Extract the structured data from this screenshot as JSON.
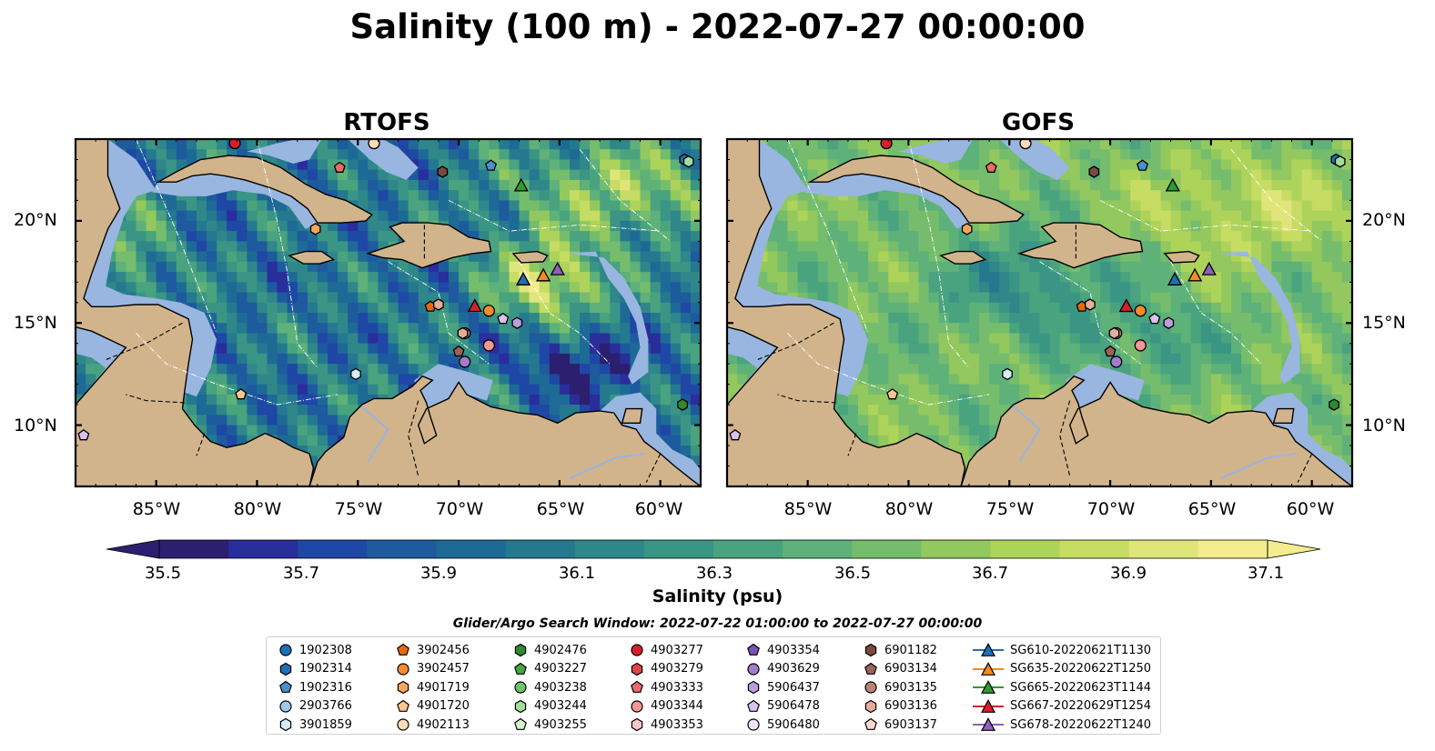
{
  "title": "Salinity (100 m) - 2022-07-27 00:00:00",
  "panels": [
    {
      "title": "RTOFS"
    },
    {
      "title": "GOFS"
    }
  ],
  "map_extent": {
    "lon_min": -89,
    "lon_max": -58,
    "lat_min": 7,
    "lat_max": 24
  },
  "lat_ticks": [
    "20°N",
    "15°N",
    "10°N"
  ],
  "lon_ticks": [
    "85°W",
    "80°W",
    "75°W",
    "70°W",
    "65°W",
    "60°W"
  ],
  "colorbar": {
    "label": "Salinity (psu)",
    "ticks": [
      "35.5",
      "35.7",
      "35.9",
      "36.1",
      "36.3",
      "36.5",
      "36.7",
      "36.9",
      "37.1"
    ],
    "min": 35.5,
    "max": 37.1,
    "step": 0.1,
    "colors": [
      "#2c1f70",
      "#2a2d9c",
      "#1f47a5",
      "#1d5a9e",
      "#1e6a96",
      "#25798f",
      "#2f878a",
      "#3a9585",
      "#49a37e",
      "#5db179",
      "#75bd6d",
      "#92c85e",
      "#aed35b",
      "#c6dc63",
      "#e0e57a",
      "#f4ec8e"
    ],
    "extend": "both"
  },
  "land_color": "#d2b48c",
  "shelf_color": "#98b6e0",
  "search_window": "Glider/Argo Search Window: 2022-07-22 01:00:00 to 2022-07-27 00:00:00",
  "legend": {
    "columns": [
      [
        {
          "label": "1902308",
          "marker": "circle",
          "color": "#1f6fb4"
        },
        {
          "label": "1902314",
          "marker": "hexagon",
          "color": "#1f6fb4"
        },
        {
          "label": "1902316",
          "marker": "pentagon",
          "color": "#4a90cc"
        },
        {
          "label": "2903766",
          "marker": "circle",
          "color": "#9ec9ea"
        },
        {
          "label": "3901859",
          "marker": "hexagon",
          "color": "#d6ecf8"
        }
      ],
      [
        {
          "label": "3902456",
          "marker": "pentagon",
          "color": "#e3690e"
        },
        {
          "label": "3902457",
          "marker": "circle",
          "color": "#f58a30"
        },
        {
          "label": "4901719",
          "marker": "hexagon",
          "color": "#f9a55b"
        },
        {
          "label": "4901720",
          "marker": "pentagon",
          "color": "#fcc591"
        },
        {
          "label": "4902113",
          "marker": "circle",
          "color": "#fddcb8"
        }
      ],
      [
        {
          "label": "4902476",
          "marker": "hexagon",
          "color": "#2e8b2e"
        },
        {
          "label": "4903227",
          "marker": "pentagon",
          "color": "#43a843"
        },
        {
          "label": "4903238",
          "marker": "circle",
          "color": "#6fc36a"
        },
        {
          "label": "4903244",
          "marker": "hexagon",
          "color": "#a5dc9c"
        },
        {
          "label": "4903255",
          "marker": "pentagon",
          "color": "#d5f2cd"
        }
      ],
      [
        {
          "label": "4903277",
          "marker": "circle",
          "color": "#d62027"
        },
        {
          "label": "4903279",
          "marker": "hexagon",
          "color": "#e0464a"
        },
        {
          "label": "4903333",
          "marker": "pentagon",
          "color": "#ec6a6a"
        },
        {
          "label": "4903344",
          "marker": "circle",
          "color": "#f59595"
        },
        {
          "label": "4903353",
          "marker": "hexagon",
          "color": "#fbc8c8"
        }
      ],
      [
        {
          "label": "4903354",
          "marker": "pentagon",
          "color": "#7b52ae"
        },
        {
          "label": "4903629",
          "marker": "circle",
          "color": "#a17cc9"
        },
        {
          "label": "5906437",
          "marker": "hexagon",
          "color": "#bd9ddc"
        },
        {
          "label": "5906478",
          "marker": "pentagon",
          "color": "#d8c3ec"
        },
        {
          "label": "5906480",
          "marker": "circle",
          "color": "#efe3f8"
        }
      ],
      [
        {
          "label": "6901182",
          "marker": "hexagon",
          "color": "#7a4a3e"
        },
        {
          "label": "6903134",
          "marker": "pentagon",
          "color": "#9a6455"
        },
        {
          "label": "6903135",
          "marker": "circle",
          "color": "#bb8373"
        },
        {
          "label": "6903136",
          "marker": "hexagon",
          "color": "#e2ad9b"
        },
        {
          "label": "6903137",
          "marker": "pentagon",
          "color": "#f8d8cc"
        }
      ],
      [
        {
          "label": "SG610-20220621T1130",
          "marker": "triangle-line",
          "color": "#1f6fb4"
        },
        {
          "label": "SG635-20220622T1250",
          "marker": "triangle-line",
          "color": "#f58a1f"
        },
        {
          "label": "SG665-20220623T1144",
          "marker": "triangle-line",
          "color": "#2e9c2e"
        },
        {
          "label": "SG667-20220629T1254",
          "marker": "triangle-line",
          "color": "#d62027"
        },
        {
          "label": "SG678-20220622T1240",
          "marker": "triangle-line",
          "color": "#8c61b7"
        }
      ]
    ]
  }
}
